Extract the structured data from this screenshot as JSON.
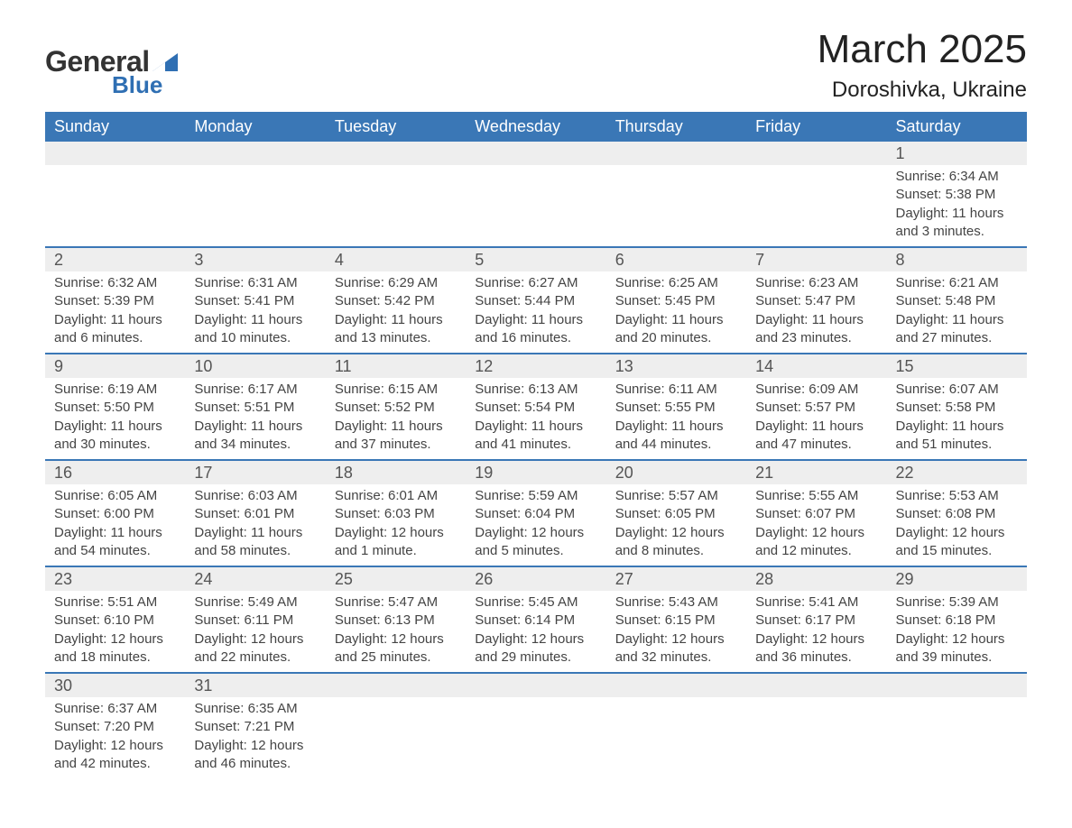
{
  "logo": {
    "word1": "General",
    "word2": "Blue",
    "triangle_color": "#2f6fb3"
  },
  "title": "March 2025",
  "location": "Doroshivka, Ukraine",
  "colors": {
    "header_bg": "#3a77b6",
    "header_text": "#ffffff",
    "daynum_bg": "#eeeeee",
    "row_border": "#3a77b6",
    "body_text": "#444444"
  },
  "day_headers": [
    "Sunday",
    "Monday",
    "Tuesday",
    "Wednesday",
    "Thursday",
    "Friday",
    "Saturday"
  ],
  "weeks": [
    {
      "days": [
        null,
        null,
        null,
        null,
        null,
        null,
        {
          "n": "1",
          "sunrise": "6:34 AM",
          "sunset": "5:38 PM",
          "daylight": "11 hours and 3 minutes."
        }
      ]
    },
    {
      "days": [
        {
          "n": "2",
          "sunrise": "6:32 AM",
          "sunset": "5:39 PM",
          "daylight": "11 hours and 6 minutes."
        },
        {
          "n": "3",
          "sunrise": "6:31 AM",
          "sunset": "5:41 PM",
          "daylight": "11 hours and 10 minutes."
        },
        {
          "n": "4",
          "sunrise": "6:29 AM",
          "sunset": "5:42 PM",
          "daylight": "11 hours and 13 minutes."
        },
        {
          "n": "5",
          "sunrise": "6:27 AM",
          "sunset": "5:44 PM",
          "daylight": "11 hours and 16 minutes."
        },
        {
          "n": "6",
          "sunrise": "6:25 AM",
          "sunset": "5:45 PM",
          "daylight": "11 hours and 20 minutes."
        },
        {
          "n": "7",
          "sunrise": "6:23 AM",
          "sunset": "5:47 PM",
          "daylight": "11 hours and 23 minutes."
        },
        {
          "n": "8",
          "sunrise": "6:21 AM",
          "sunset": "5:48 PM",
          "daylight": "11 hours and 27 minutes."
        }
      ]
    },
    {
      "days": [
        {
          "n": "9",
          "sunrise": "6:19 AM",
          "sunset": "5:50 PM",
          "daylight": "11 hours and 30 minutes."
        },
        {
          "n": "10",
          "sunrise": "6:17 AM",
          "sunset": "5:51 PM",
          "daylight": "11 hours and 34 minutes."
        },
        {
          "n": "11",
          "sunrise": "6:15 AM",
          "sunset": "5:52 PM",
          "daylight": "11 hours and 37 minutes."
        },
        {
          "n": "12",
          "sunrise": "6:13 AM",
          "sunset": "5:54 PM",
          "daylight": "11 hours and 41 minutes."
        },
        {
          "n": "13",
          "sunrise": "6:11 AM",
          "sunset": "5:55 PM",
          "daylight": "11 hours and 44 minutes."
        },
        {
          "n": "14",
          "sunrise": "6:09 AM",
          "sunset": "5:57 PM",
          "daylight": "11 hours and 47 minutes."
        },
        {
          "n": "15",
          "sunrise": "6:07 AM",
          "sunset": "5:58 PM",
          "daylight": "11 hours and 51 minutes."
        }
      ]
    },
    {
      "days": [
        {
          "n": "16",
          "sunrise": "6:05 AM",
          "sunset": "6:00 PM",
          "daylight": "11 hours and 54 minutes."
        },
        {
          "n": "17",
          "sunrise": "6:03 AM",
          "sunset": "6:01 PM",
          "daylight": "11 hours and 58 minutes."
        },
        {
          "n": "18",
          "sunrise": "6:01 AM",
          "sunset": "6:03 PM",
          "daylight": "12 hours and 1 minute."
        },
        {
          "n": "19",
          "sunrise": "5:59 AM",
          "sunset": "6:04 PM",
          "daylight": "12 hours and 5 minutes."
        },
        {
          "n": "20",
          "sunrise": "5:57 AM",
          "sunset": "6:05 PM",
          "daylight": "12 hours and 8 minutes."
        },
        {
          "n": "21",
          "sunrise": "5:55 AM",
          "sunset": "6:07 PM",
          "daylight": "12 hours and 12 minutes."
        },
        {
          "n": "22",
          "sunrise": "5:53 AM",
          "sunset": "6:08 PM",
          "daylight": "12 hours and 15 minutes."
        }
      ]
    },
    {
      "days": [
        {
          "n": "23",
          "sunrise": "5:51 AM",
          "sunset": "6:10 PM",
          "daylight": "12 hours and 18 minutes."
        },
        {
          "n": "24",
          "sunrise": "5:49 AM",
          "sunset": "6:11 PM",
          "daylight": "12 hours and 22 minutes."
        },
        {
          "n": "25",
          "sunrise": "5:47 AM",
          "sunset": "6:13 PM",
          "daylight": "12 hours and 25 minutes."
        },
        {
          "n": "26",
          "sunrise": "5:45 AM",
          "sunset": "6:14 PM",
          "daylight": "12 hours and 29 minutes."
        },
        {
          "n": "27",
          "sunrise": "5:43 AM",
          "sunset": "6:15 PM",
          "daylight": "12 hours and 32 minutes."
        },
        {
          "n": "28",
          "sunrise": "5:41 AM",
          "sunset": "6:17 PM",
          "daylight": "12 hours and 36 minutes."
        },
        {
          "n": "29",
          "sunrise": "5:39 AM",
          "sunset": "6:18 PM",
          "daylight": "12 hours and 39 minutes."
        }
      ]
    },
    {
      "days": [
        {
          "n": "30",
          "sunrise": "6:37 AM",
          "sunset": "7:20 PM",
          "daylight": "12 hours and 42 minutes."
        },
        {
          "n": "31",
          "sunrise": "6:35 AM",
          "sunset": "7:21 PM",
          "daylight": "12 hours and 46 minutes."
        },
        null,
        null,
        null,
        null,
        null
      ]
    }
  ],
  "labels": {
    "sunrise": "Sunrise: ",
    "sunset": "Sunset: ",
    "daylight": "Daylight: "
  }
}
